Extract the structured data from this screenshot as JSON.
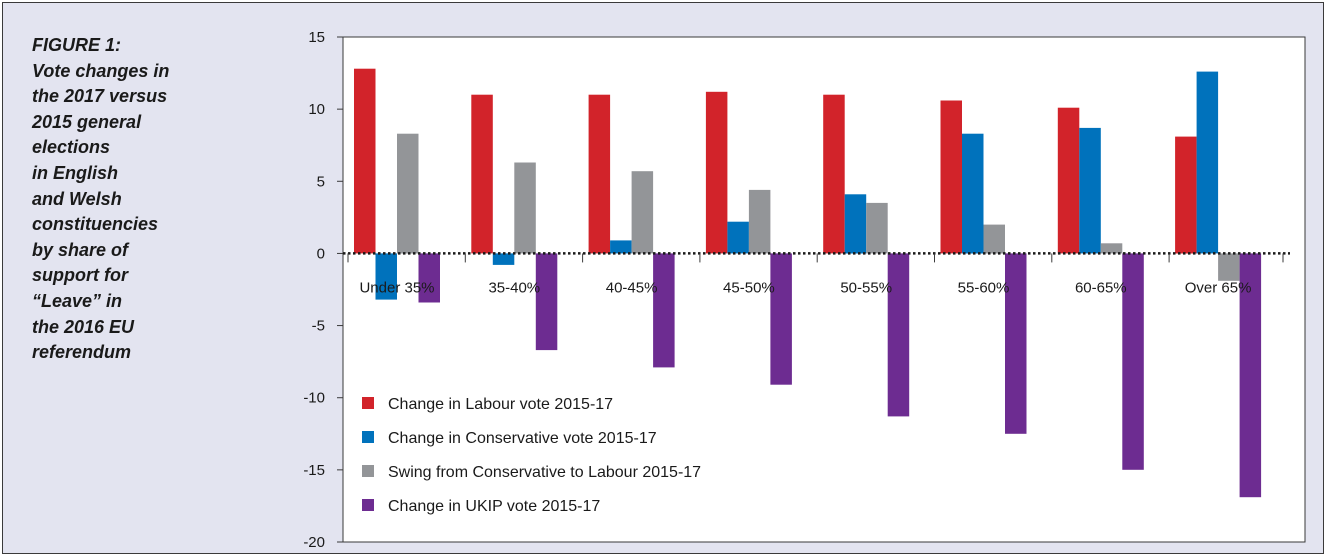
{
  "caption": {
    "lines": [
      "FIGURE 1:",
      "Vote changes in",
      "the 2017 versus",
      "2015 general",
      "elections",
      "in English",
      "and Welsh",
      "constituencies",
      "by share of",
      "support for",
      "“Leave” in",
      "the 2016 EU",
      "referendum"
    ]
  },
  "chart_data": {
    "type": "bar",
    "title": "",
    "xlabel": "",
    "ylabel": "",
    "ylim": [
      -20,
      15
    ],
    "yticks": [
      15,
      10,
      5,
      0,
      -5,
      -10,
      -15,
      -20
    ],
    "grid": false,
    "legend_position": "bottom-left",
    "categories": [
      "Under 35%",
      "35-40%",
      "40-45%",
      "45-50%",
      "50-55%",
      "55-60%",
      "60-65%",
      "Over 65%"
    ],
    "series": [
      {
        "name": "Change in Labour vote 2015-17",
        "color": "#d2232a",
        "values": [
          12.8,
          11.0,
          11.0,
          11.2,
          11.0,
          10.6,
          10.1,
          8.1
        ]
      },
      {
        "name": "Change in Conservative vote 2015-17",
        "color": "#0072bc",
        "values": [
          -3.2,
          -0.8,
          0.9,
          2.2,
          4.1,
          8.3,
          8.7,
          12.6
        ]
      },
      {
        "name": "Swing from Conservative to Labour 2015-17",
        "color": "#939598",
        "values": [
          8.3,
          6.3,
          5.7,
          4.4,
          3.5,
          2.0,
          0.7,
          -1.9
        ]
      },
      {
        "name": "Change in UKIP vote 2015-17",
        "color": "#6d2c91",
        "values": [
          -3.4,
          -6.7,
          -7.9,
          -9.1,
          -11.3,
          -12.5,
          -15.0,
          -16.9
        ]
      }
    ]
  }
}
